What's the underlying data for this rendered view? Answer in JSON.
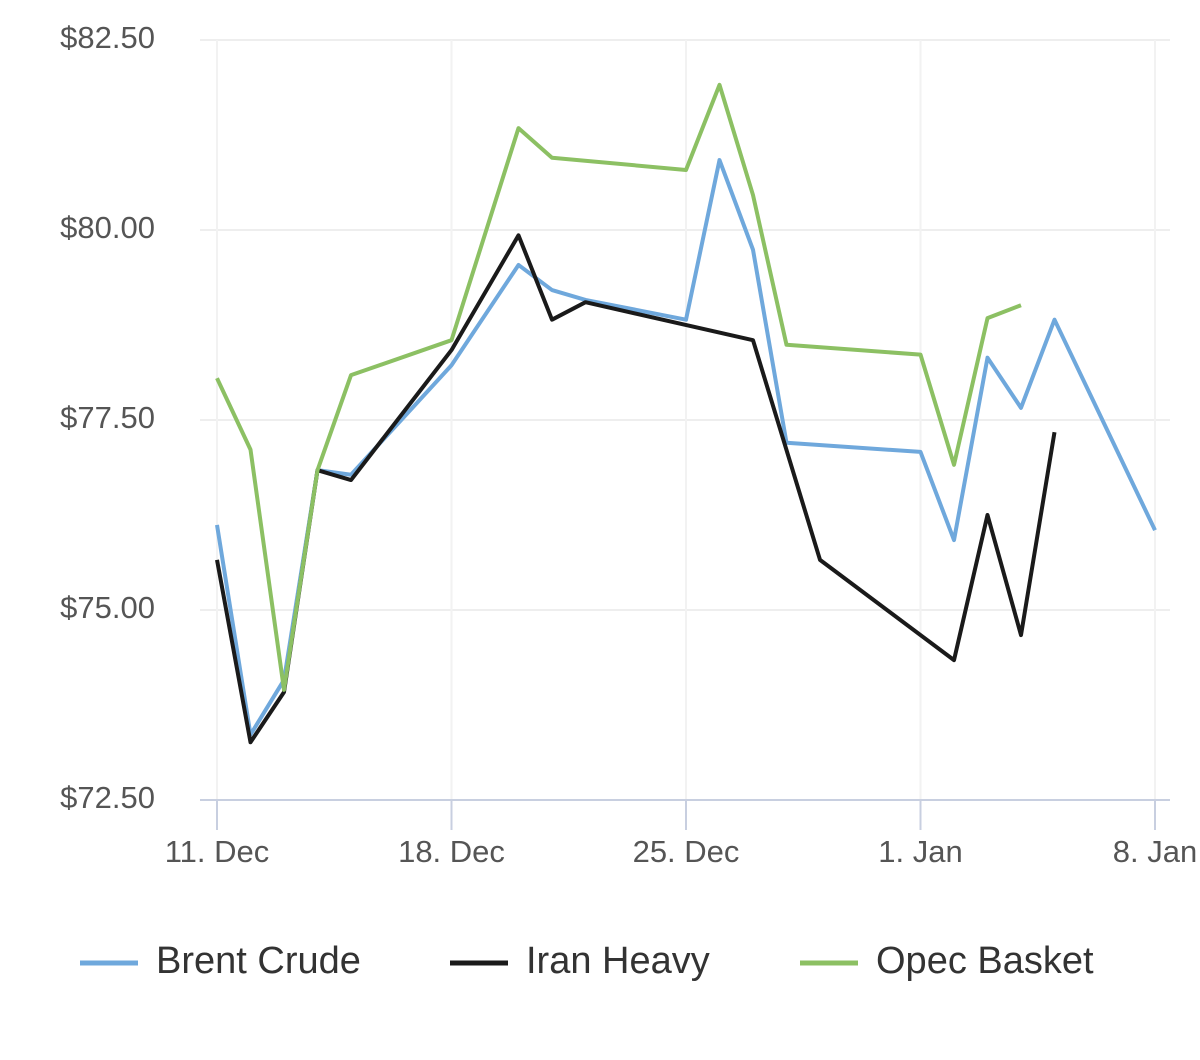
{
  "chart_data": {
    "type": "line",
    "xlim": [
      0,
      28
    ],
    "xticks": [
      {
        "value": 0,
        "label": "11. Dec"
      },
      {
        "value": 7,
        "label": "18. Dec"
      },
      {
        "value": 14,
        "label": "25. Dec"
      },
      {
        "value": 21,
        "label": "1. Jan"
      },
      {
        "value": 28,
        "label": "8. Jan"
      }
    ],
    "ylim": [
      72.5,
      82.5
    ],
    "yticks": [
      {
        "value": 72.5,
        "label": "$72.50"
      },
      {
        "value": 75,
        "label": "$75.00"
      },
      {
        "value": 77.5,
        "label": "$77.50"
      },
      {
        "value": 80,
        "label": "$80.00"
      },
      {
        "value": 82.5,
        "label": "$82.50"
      }
    ],
    "grid": true,
    "legend": "bottom",
    "series": [
      {
        "name": "Brent Crude",
        "color": "#6fa8dc",
        "x": [
          0,
          1,
          2,
          3,
          4,
          7,
          9,
          10,
          11,
          14,
          15,
          16,
          17,
          21,
          22,
          23,
          24,
          25,
          28
        ],
        "values": [
          76.12,
          73.36,
          74.08,
          76.84,
          76.78,
          78.22,
          79.54,
          79.21,
          79.08,
          78.82,
          80.92,
          79.74,
          77.2,
          77.08,
          75.92,
          78.32,
          77.66,
          78.82,
          76.05
        ]
      },
      {
        "name": "Iran Heavy",
        "color": "#1a1a1a",
        "x": [
          0,
          1,
          2,
          3,
          4,
          7,
          9,
          10,
          11,
          16,
          18,
          22,
          23,
          24,
          25
        ],
        "values": [
          75.66,
          73.26,
          73.92,
          76.84,
          76.71,
          78.42,
          79.93,
          78.82,
          79.05,
          78.55,
          75.66,
          74.34,
          76.25,
          74.67,
          77.34
        ]
      },
      {
        "name": "Opec Basket",
        "color": "#8cc063",
        "x": [
          0,
          1,
          2,
          3,
          4,
          7,
          9,
          10,
          14,
          15,
          16,
          17,
          21,
          22,
          23,
          24
        ],
        "values": [
          78.05,
          77.11,
          73.95,
          76.84,
          78.09,
          78.55,
          81.34,
          80.95,
          80.79,
          81.91,
          80.46,
          78.49,
          78.36,
          76.91,
          78.84,
          79.01
        ]
      }
    ]
  }
}
